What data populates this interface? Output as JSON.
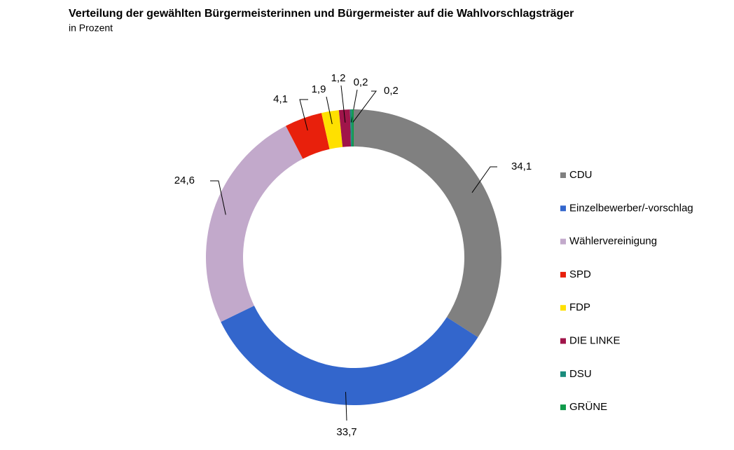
{
  "chart_data": {
    "type": "donut",
    "title": "Verteilung der gewählten Bürgermeisterinnen und Bürgermeister auf die Wahlvorschlagsträger",
    "subtitle": "in Prozent",
    "categories": [
      "CDU",
      "Einzelbewerber/-vorschlag",
      "Wählervereinigung",
      "SPD",
      "FDP",
      "DIE LINKE",
      "DSU",
      "GRÜNE"
    ],
    "values": [
      34.1,
      33.7,
      24.6,
      4.1,
      1.9,
      1.2,
      0.2,
      0.2
    ],
    "value_labels": [
      "34,1",
      "33,7",
      "24,6",
      "4,1",
      "1,9",
      "1,2",
      "0,2",
      "0,2"
    ],
    "colors": [
      "#808080",
      "#3366cc",
      "#c2a9cb",
      "#e8200c",
      "#ffe000",
      "#a0154a",
      "#1a8c7c",
      "#0f9a4a"
    ],
    "legend": "right"
  }
}
